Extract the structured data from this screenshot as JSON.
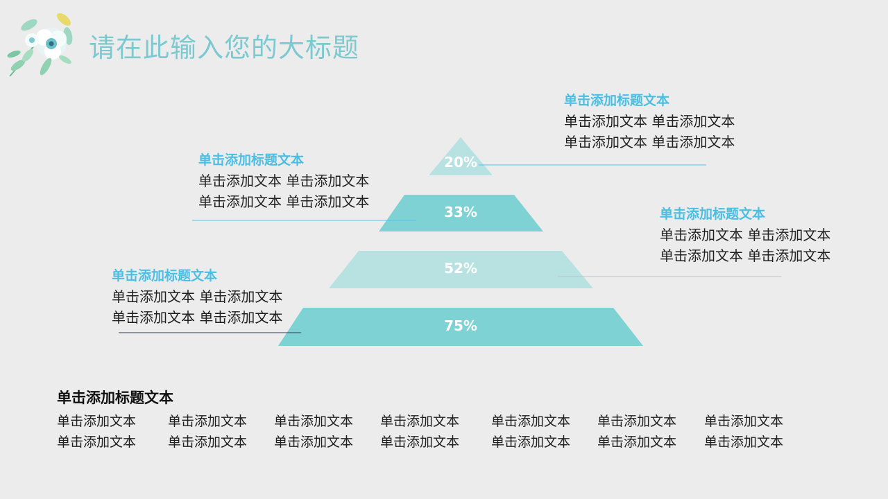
{
  "slide": {
    "title": "请在此输入您的大标题"
  },
  "pyramid": {
    "tiers": [
      {
        "label": "20%",
        "value": 20,
        "color": "#b8e2e2"
      },
      {
        "label": "33%",
        "value": 33,
        "color": "#7ed2d4"
      },
      {
        "label": "52%",
        "value": 52,
        "color": "#b8e2e2"
      },
      {
        "label": "75%",
        "value": 75,
        "color": "#7ed2d4"
      }
    ]
  },
  "callouts": [
    {
      "title": "单击添加标题文本",
      "lines": [
        "单击添加文本 单击添加文本",
        "单击添加文本 单击添加文本"
      ]
    },
    {
      "title": "单击添加标题文本",
      "lines": [
        "单击添加文本 单击添加文本",
        "单击添加文本 单击添加文本"
      ]
    },
    {
      "title": "单击添加标题文本",
      "lines": [
        "单击添加文本 单击添加文本",
        "单击添加文本 单击添加文本"
      ]
    },
    {
      "title": "单击添加标题文本",
      "lines": [
        "单击添加文本 单击添加文本",
        "单击添加文本 单击添加文本"
      ]
    }
  ],
  "bottom": {
    "title": "单击添加标题文本",
    "rows": [
      [
        "单击添加文本",
        "单击添加文本",
        "单击添加文本",
        "单击添加文本",
        "单击添加文本",
        "单击添加文本",
        "单击添加文本"
      ],
      [
        "单击添加文本",
        "单击添加文本",
        "单击添加文本",
        "单击添加文本",
        "单击添加文本",
        "单击添加文本",
        "单击添加文本"
      ]
    ]
  },
  "colors": {
    "accent_title": "#7cc9cf",
    "callout_title": "#4bbfe3",
    "tier_dark": "#7ed2d4",
    "tier_light": "#b8e2e2"
  }
}
